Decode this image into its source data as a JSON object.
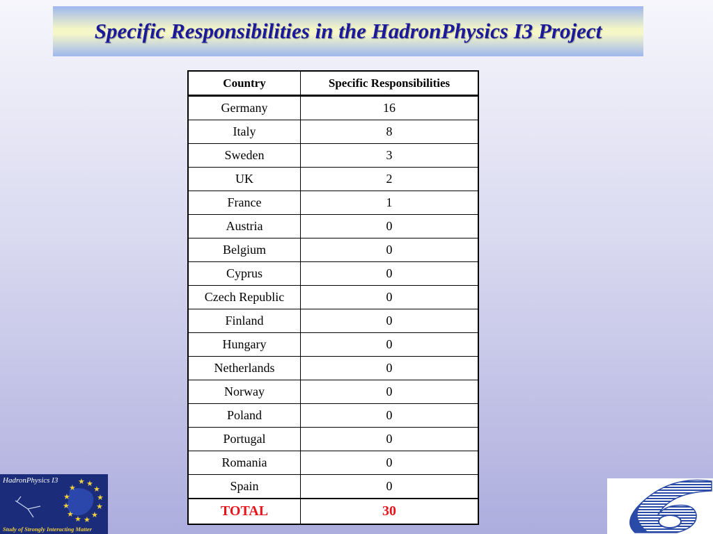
{
  "slide": {
    "title": "Specific Responsibilities in the HadronPhysics I3 Project"
  },
  "table": {
    "headers": [
      "Country",
      "Specific Responsibilities"
    ],
    "rows": [
      [
        "Germany",
        "16"
      ],
      [
        "Italy",
        "8"
      ],
      [
        "Sweden",
        "3"
      ],
      [
        "UK",
        "2"
      ],
      [
        "France",
        "1"
      ],
      [
        "Austria",
        "0"
      ],
      [
        "Belgium",
        "0"
      ],
      [
        "Cyprus",
        "0"
      ],
      [
        "Czech Republic",
        "0"
      ],
      [
        "Finland",
        "0"
      ],
      [
        "Hungary",
        "0"
      ],
      [
        "Netherlands",
        "0"
      ],
      [
        "Norway",
        "0"
      ],
      [
        "Poland",
        "0"
      ],
      [
        "Portugal",
        "0"
      ],
      [
        "Romania",
        "0"
      ],
      [
        "Spain",
        "0"
      ]
    ],
    "total": [
      "TOTAL",
      "30"
    ]
  },
  "logo_left": {
    "title": "HadronPhysics I3",
    "subtitle": "Study of Strongly Interacting Matter"
  },
  "logo_right": {
    "mark": "6"
  },
  "colors": {
    "title": "#1a1a9a",
    "total": "#e8141c",
    "logo_bg": "#1a2c7a",
    "logo_stars": "#f0d040",
    "fp6_blue": "#2a4aa8"
  }
}
